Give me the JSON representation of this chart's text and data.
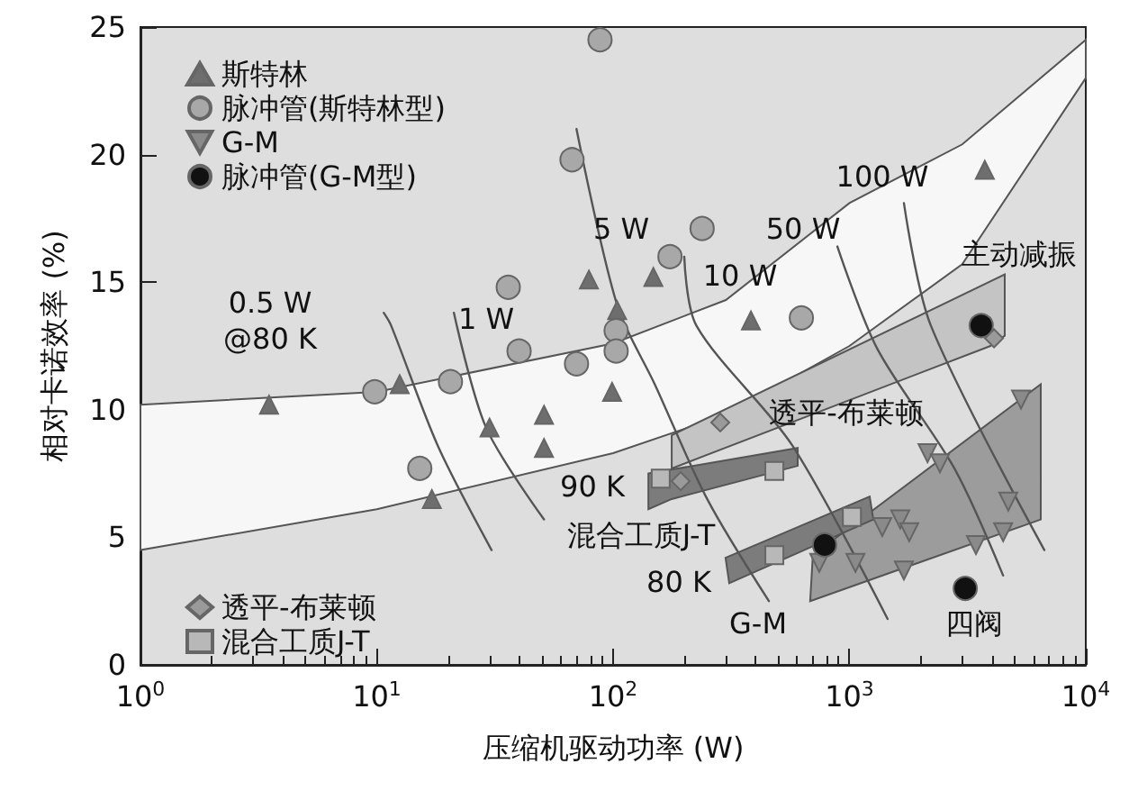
{
  "chart_data": {
    "type": "scatter",
    "xlabel": "压缩机驱动功率 (W)",
    "ylabel": "相对卡诺效率 (%)",
    "log": "x",
    "grid": false,
    "legend": "left",
    "xlim": [
      1,
      10000
    ],
    "xticks": [
      {
        "value": 1,
        "label": "10$^{0}$"
      },
      {
        "value": 10,
        "label": "10$^{1}$"
      },
      {
        "value": 100,
        "label": "10$^{2}$"
      },
      {
        "value": 1000,
        "label": "10$^{3}$"
      },
      {
        "value": 10000,
        "label": "10$^{4}$"
      }
    ],
    "ylim": [
      0,
      25
    ],
    "yticks": [
      0,
      5,
      10,
      15,
      20,
      25
    ],
    "series": [
      {
        "type": "area",
        "color": "#f7f7f7",
        "x": [
          1,
          10,
          100,
          300,
          1000,
          3000,
          10000,
          10000,
          3000,
          1000,
          300,
          100,
          10,
          1
        ],
        "values": [
          10.2,
          10.7,
          12.6,
          14.3,
          18.1,
          20.4,
          24.5,
          23,
          15.7,
          12.5,
          9.8,
          8.3,
          6.1,
          4.5
        ]
      },
      {
        "type": "area",
        "color": "#c4c4c4",
        "x": [
          177,
          4540,
          4540,
          3950,
          177
        ],
        "values": [
          9.0,
          15.3,
          12.9,
          12.5,
          7.7
        ]
      },
      {
        "type": "area",
        "color": "#7c7c7c",
        "x": [
          141,
          604,
          604,
          177,
          141
        ],
        "values": [
          7.5,
          8.5,
          7.8,
          6.5,
          6.1
        ]
      },
      {
        "type": "area",
        "color": "#9c9c9c",
        "x": [
          700,
          6450,
          6450,
          682
        ],
        "values": [
          4.3,
          11.0,
          5.7,
          2.5
        ]
      },
      {
        "type": "area",
        "color": "#7c7c7c",
        "x": [
          299,
          1218,
          1262,
          310
        ],
        "values": [
          4.2,
          6.6,
          5.7,
          3.2
        ]
      },
      {
        "type": "line",
        "color": "#555555",
        "marker": "none",
        "x": [
          10.7,
          11.5,
          18.1,
          30.6
        ],
        "values": [
          13.8,
          13.3,
          8.6,
          4.5
        ]
      },
      {
        "type": "line",
        "color": "#555555",
        "marker": "none",
        "x": [
          21.2,
          29,
          51
        ],
        "values": [
          13.8,
          9.3,
          5.7
        ]
      },
      {
        "type": "line",
        "color": "#555555",
        "marker": "none",
        "x": [
          70,
          104,
          150,
          250,
          456
        ],
        "values": [
          21,
          14.1,
          11,
          6.5,
          2.5
        ]
      },
      {
        "type": "line",
        "color": "#555555",
        "marker": "none",
        "x": [
          200,
          225,
          573,
          1450
        ],
        "values": [
          16,
          13.3,
          8.6,
          1.8
        ]
      },
      {
        "type": "line",
        "color": "#555555",
        "marker": "none",
        "x": [
          889,
          1310,
          2780,
          4470
        ],
        "values": [
          16.4,
          12.4,
          7.7,
          3.5
        ]
      },
      {
        "type": "line",
        "color": "#555555",
        "marker": "none",
        "x": [
          1700,
          2210,
          6680
        ],
        "values": [
          18.1,
          13.3,
          4.5
        ]
      },
      {
        "name": "斯特林",
        "color": "#6e6e6e",
        "marker": "triangle",
        "x": [
          3.5,
          12.5,
          17.1,
          30,
          51,
          51,
          99,
          79,
          104,
          148,
          383,
          3740
        ],
        "values": [
          10.2,
          11.0,
          6.5,
          9.3,
          9.8,
          8.5,
          10.7,
          15.1,
          13.9,
          15.2,
          13.5,
          19.4
        ]
      },
      {
        "name": "脉冲管(斯特林型)",
        "color": "#a8a8a8",
        "marker": "circle",
        "x": [
          88,
          67,
          36,
          40,
          70,
          103,
          103,
          9.8,
          20.5,
          15.2,
          238,
          174,
          626
        ],
        "values": [
          24.5,
          19.8,
          14.8,
          12.3,
          11.8,
          13.1,
          12.3,
          10.7,
          11.1,
          7.7,
          17.1,
          16.0,
          13.6
        ]
      },
      {
        "name": "G-M",
        "color": "#8a8a8a",
        "marker": "triangle-down",
        "x": [
          5320,
          2140,
          2415,
          4700,
          4470,
          3430,
          1640,
          1790,
          1377,
          1060,
          1700,
          745
        ],
        "values": [
          10.4,
          8.3,
          7.9,
          6.4,
          5.2,
          4.7,
          5.7,
          5.2,
          5.4,
          4.0,
          3.7,
          4.0
        ]
      },
      {
        "name": "脉冲管(G-M型)",
        "color": "#111111",
        "marker": "circle",
        "x": [
          3610,
          785,
          3090
        ],
        "values": [
          13.3,
          4.7,
          3.0
        ]
      },
      {
        "name": "透平-布莱顿",
        "color": "#9a9a9a",
        "marker": "diamond",
        "x": [
          284,
          193,
          4090
        ],
        "values": [
          9.5,
          7.2,
          12.8
        ]
      },
      {
        "name": "混合工质J-T",
        "color": "#b8b8b8",
        "marker": "square",
        "x": [
          159,
          481,
          1024,
          481
        ],
        "values": [
          7.3,
          7.6,
          5.8,
          4.3
        ]
      }
    ],
    "annotations": [
      "0.5 W\n@80 K",
      "1 W",
      "5 W",
      "10 W",
      "50 W",
      "100 W",
      "主动减振",
      "透平-布莱顿",
      "90 K",
      "混合工质J-T",
      "80 K",
      "G-M",
      "四阀"
    ]
  }
}
